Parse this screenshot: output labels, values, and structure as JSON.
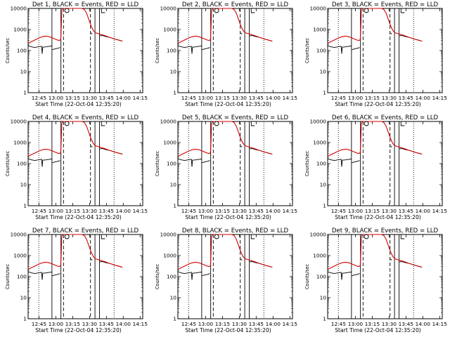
{
  "chart_data": {
    "type": "line",
    "layout": "3x3 grid",
    "y_scale": "log",
    "ylim": [
      1,
      10000
    ],
    "ylabel": "Counts/sec",
    "xlabel": "Start Time (22-Oct-04 12:35:20)",
    "x_tick_labels": [
      "12:45",
      "13:00",
      "13:15",
      "13:30",
      "13:45",
      "14:00",
      "14:15"
    ],
    "y_tick_labels": [
      "1",
      "10",
      "100",
      "1000",
      "10000"
    ],
    "series_legend": "BLACK = Events, RED = LLD",
    "series_colors": {
      "events": "#000000",
      "lld": "#d40000"
    },
    "panels": [
      {
        "title": "Det 1, BLACK = Events, RED = LLD"
      },
      {
        "title": "Det 2, BLACK = Events, RED = LLD"
      },
      {
        "title": "Det 3, BLACK = Events, RED = LLD"
      },
      {
        "title": "Det 4, BLACK = Events, RED = LLD"
      },
      {
        "title": "Det 5, BLACK = Events, RED = LLD"
      },
      {
        "title": "Det 6, BLACK = Events, RED = LLD"
      },
      {
        "title": "Det 7, BLACK = Events, RED = LLD"
      },
      {
        "title": "Det 8, BLACK = Events, RED = LLD"
      },
      {
        "title": "Det 9, BLACK = Events, RED = LLD"
      }
    ],
    "lld_series": {
      "x_minutes": [
        0,
        2.5,
        5,
        7.5,
        10,
        12.5,
        15,
        17.5,
        20,
        22.5,
        25,
        27.5,
        29,
        29.5,
        30,
        31,
        32,
        33,
        34,
        35,
        36,
        38,
        40,
        42,
        44,
        46,
        48,
        50,
        52,
        54,
        56,
        58,
        60,
        62,
        64,
        66,
        68,
        70,
        72,
        74,
        76,
        78,
        80,
        82,
        84
      ],
      "y": [
        220,
        260,
        300,
        350,
        400,
        450,
        480,
        470,
        430,
        380,
        330,
        300,
        320,
        1200,
        8000,
        10000,
        10000,
        10000,
        10000,
        10000,
        10000,
        10000,
        10000,
        10000,
        10000,
        10000,
        10000,
        9000,
        6000,
        3000,
        1500,
        900,
        700,
        650,
        600,
        560,
        520,
        470,
        430,
        400,
        370,
        340,
        320,
        300,
        280
      ]
    },
    "events_segments": [
      {
        "x_minutes": [
          0,
          3,
          6,
          9,
          12,
          12.5,
          13,
          16,
          19,
          21
        ],
        "y": [
          170,
          150,
          140,
          150,
          160,
          70,
          145,
          150,
          160,
          165
        ]
      },
      {
        "x_minutes": [
          21.5,
          24,
          27,
          28.5
        ],
        "y": [
          110,
          120,
          130,
          140
        ]
      },
      {
        "x_minutes": [
          56,
          57
        ],
        "y": [
          700,
          600
        ]
      },
      {
        "x_minutes": [
          57.5,
          59
        ],
        "y": [
          1,
          1
        ]
      },
      {
        "x_minutes": [
          64,
          66,
          68,
          70,
          72,
          74,
          76,
          78,
          80,
          82,
          84
        ],
        "y": [
          500,
          520,
          480,
          450,
          430,
          400,
          370,
          340,
          320,
          300,
          280
        ]
      }
    ],
    "vertical_lines": [
      {
        "x_minute": 9.5,
        "style": "dotted"
      },
      {
        "x_minute": 21.2,
        "style": "solid"
      },
      {
        "x_minute": 29.2,
        "style": "solid"
      },
      {
        "x_minute": 31.5,
        "style": "dashed"
      },
      {
        "x_minute": 55.5,
        "style": "dashed"
      },
      {
        "x_minute": 59.5,
        "style": "solid"
      },
      {
        "x_minute": 63.5,
        "style": "solid"
      },
      {
        "x_minute": 76.5,
        "style": "dotted"
      }
    ],
    "markers": [
      {
        "type": "circle",
        "x_minute": 34.5,
        "y": 10000
      },
      {
        "type": "bracket",
        "x_minute": 66.5,
        "y": 10000
      }
    ],
    "x_tick_minutes": [
      9.67,
      24.67,
      39.67,
      54.67,
      69.67,
      84.67,
      99.67
    ]
  }
}
